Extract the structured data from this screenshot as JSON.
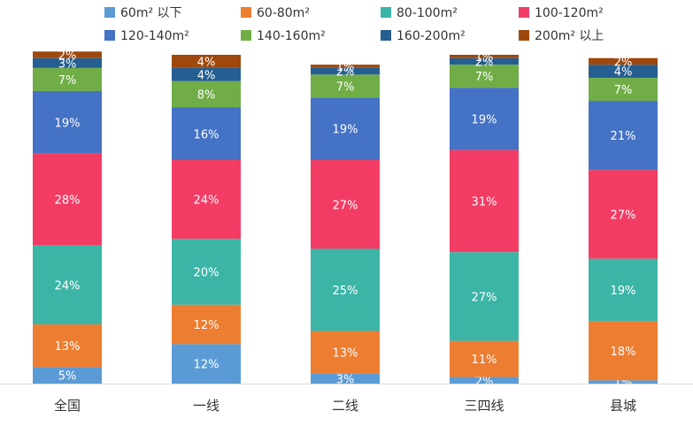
{
  "chart_data": {
    "type": "bar",
    "stacked": true,
    "percent": true,
    "categories": [
      "全国",
      "一线",
      "二线",
      "三四线",
      "县城"
    ],
    "series": [
      {
        "name": "60m² 以下",
        "color": "#5B9BD5",
        "values": [
          5,
          12,
          3,
          2,
          1
        ]
      },
      {
        "name": "60-80m²",
        "color": "#ED7D31",
        "values": [
          13,
          12,
          13,
          11,
          18
        ]
      },
      {
        "name": "80-100m²",
        "color": "#3CB5A7",
        "values": [
          24,
          20,
          25,
          27,
          19
        ]
      },
      {
        "name": "100-120m²",
        "color": "#F23C64",
        "values": [
          28,
          24,
          27,
          31,
          27
        ]
      },
      {
        "name": "120-140m²",
        "color": "#4472C4",
        "values": [
          19,
          16,
          19,
          19,
          21
        ]
      },
      {
        "name": "140-160m²",
        "color": "#70AD47",
        "values": [
          7,
          8,
          7,
          7,
          7
        ]
      },
      {
        "name": "160-200m²",
        "color": "#255E91",
        "values": [
          3,
          4,
          2,
          2,
          4
        ]
      },
      {
        "name": "200m² 以上",
        "color": "#9E480E",
        "values": [
          2,
          4,
          1,
          1,
          2
        ]
      }
    ],
    "ylim": [
      0,
      100
    ],
    "grid": false,
    "legend": "top"
  }
}
